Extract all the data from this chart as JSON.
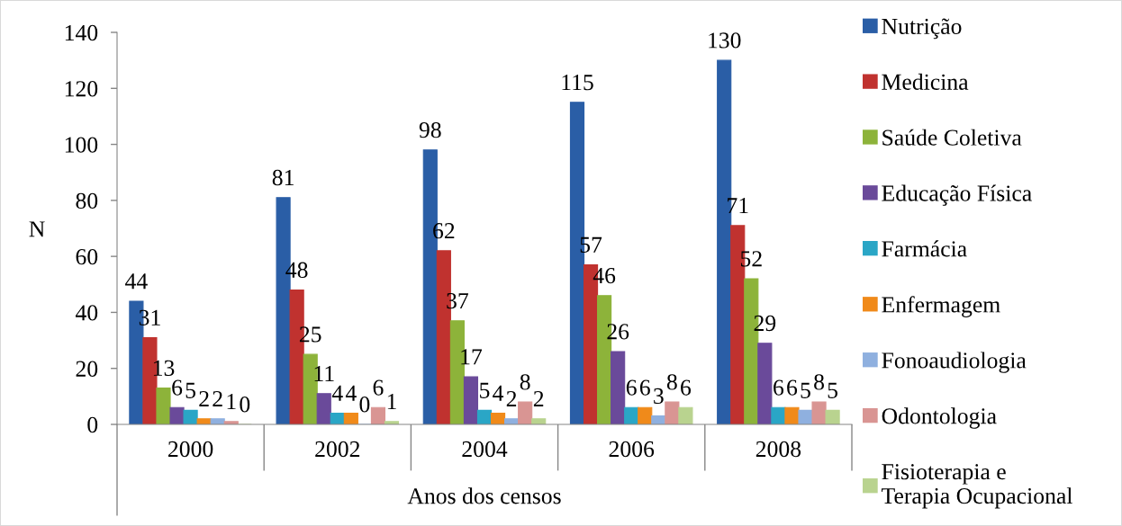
{
  "chart_data": {
    "type": "bar",
    "xlabel": "Anos dos censos",
    "ylabel": "N",
    "categories": [
      "2000",
      "2002",
      "2004",
      "2006",
      "2008"
    ],
    "series": [
      {
        "name": "Nutrição",
        "color": "#2a5ea6",
        "values": [
          44,
          81,
          98,
          115,
          130
        ]
      },
      {
        "name": "Medicina",
        "color": "#c0322f",
        "values": [
          31,
          48,
          62,
          57,
          71
        ]
      },
      {
        "name": "Saúde Coletiva",
        "color": "#8db33a",
        "values": [
          13,
          25,
          37,
          46,
          52
        ]
      },
      {
        "name": "Educação Física",
        "color": "#6a4a9a",
        "values": [
          6,
          11,
          17,
          26,
          29
        ]
      },
      {
        "name": "Farmácia",
        "color": "#2aa6c6",
        "values": [
          5,
          4,
          5,
          6,
          6
        ]
      },
      {
        "name": "Enfermagem",
        "color": "#f08a1a",
        "values": [
          2,
          4,
          4,
          6,
          6
        ]
      },
      {
        "name": "Fonoaudiologia",
        "color": "#8fb0df",
        "values": [
          2,
          0,
          2,
          3,
          5
        ]
      },
      {
        "name": "Odontologia",
        "color": "#d99593",
        "values": [
          1,
          6,
          8,
          8,
          8
        ]
      },
      {
        "name": "Fisioterapia e\nTerapia Ocupacional",
        "color": "#b9d38f",
        "values": [
          0,
          1,
          2,
          6,
          5
        ]
      }
    ],
    "ylim": [
      0,
      140
    ],
    "yticks": [
      0,
      20,
      40,
      60,
      80,
      100,
      120,
      140
    ],
    "data_labels": true,
    "legend": "right"
  }
}
